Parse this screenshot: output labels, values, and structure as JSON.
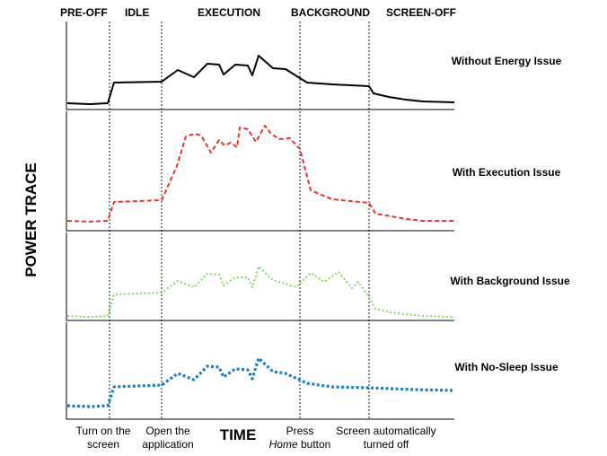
{
  "phases": [
    "PRE-OFF",
    "IDLE",
    "EXECUTION",
    "BACKGROUND",
    "SCREEN-OFF"
  ],
  "y_axis_label": "POWER TRACE",
  "x_axis_label": "TIME",
  "events": [
    {
      "line1": "Turn on the",
      "line1_italic": "",
      "line2": "screen"
    },
    {
      "line1": "Open the",
      "line1_italic": "",
      "line2": "application"
    },
    {
      "line1": "Press",
      "line1_italic": "",
      "line2_italic": "Home",
      "line2": "button"
    },
    {
      "line1": "Screen automatically",
      "line1_italic": "",
      "line2": "turned off"
    }
  ],
  "traces": [
    {
      "label": "Without Energy Issue",
      "color": "#000000",
      "style": "solid"
    },
    {
      "label": "With Execution Issue",
      "color": "#e8332a",
      "style": "dashed"
    },
    {
      "label": "With Background Issue",
      "color": "#7ed957",
      "style": "dotted"
    },
    {
      "label": "With No-Sleep Issue",
      "color": "#1a7fc1",
      "style": "dotted-thick"
    }
  ]
}
